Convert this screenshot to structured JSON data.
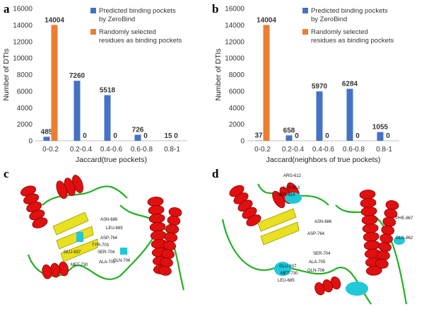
{
  "panels": {
    "a": "a",
    "b": "b",
    "c": "c",
    "d": "d"
  },
  "colors": {
    "predicted": "#4472C4",
    "random": "#ED7D31",
    "helix": "#e01010",
    "sheet": "#e8e020",
    "loop": "#22b022",
    "pocket": "#20c8d8"
  },
  "chart_data": [
    {
      "type": "bar",
      "categories": [
        "0-0.2",
        "0.2-0.4",
        "0.4-0.6",
        "0.6-0.8",
        "0.8-1"
      ],
      "series": [
        {
          "name": "Predicted binding pockets by ZeroBind",
          "values": [
            485,
            7260,
            5518,
            726,
            15
          ]
        },
        {
          "name": "Randomly selected residues as binding pockets",
          "values": [
            14004,
            0,
            0,
            0,
            0
          ]
        }
      ],
      "xlabel": "Jaccard(true pockets)",
      "ylabel": "Number of DTIs",
      "ylim": [
        0,
        16000
      ],
      "yticks": [
        "0",
        "2000",
        "4000",
        "6000",
        "8000",
        "10000",
        "12000",
        "14000",
        "16000"
      ],
      "legend": "top-right",
      "grid": false
    },
    {
      "type": "bar",
      "categories": [
        "0-0.2",
        "0.2-0.4",
        "0.4-0.6",
        "0.6-0.8",
        "0.8-1"
      ],
      "series": [
        {
          "name": "Predicted binding pockets by ZeroBind",
          "values": [
            37,
            658,
            5970,
            6284,
            1055
          ]
        },
        {
          "name": "Randomly selected residues as binding pockets",
          "values": [
            14004,
            0,
            0,
            0,
            0
          ]
        }
      ],
      "xlabel": "Jaccard(neighbors of true pockets)",
      "ylabel": "Number of DTIs",
      "ylim": [
        0,
        16000
      ],
      "yticks": [
        "0",
        "2000",
        "4000",
        "6000",
        "8000",
        "10000",
        "12000",
        "14000",
        "16000"
      ],
      "legend": "top-right",
      "grid": false
    }
  ],
  "structures": {
    "c_labels": [
      "ASN-686",
      "ASP-764",
      "TYR-703",
      "SER-704",
      "ALA-705",
      "GLU-637",
      "MET-730",
      "LEU-685",
      "GLN-706"
    ],
    "d_labels": [
      "ARG-612",
      "LYS-613",
      "SER-614",
      "ASN-686",
      "ASP-764",
      "SER-704",
      "ALA-705",
      "GLN-706",
      "GLU-637",
      "MET-730",
      "LEU-685",
      "PHE-867",
      "GLN-862"
    ]
  }
}
